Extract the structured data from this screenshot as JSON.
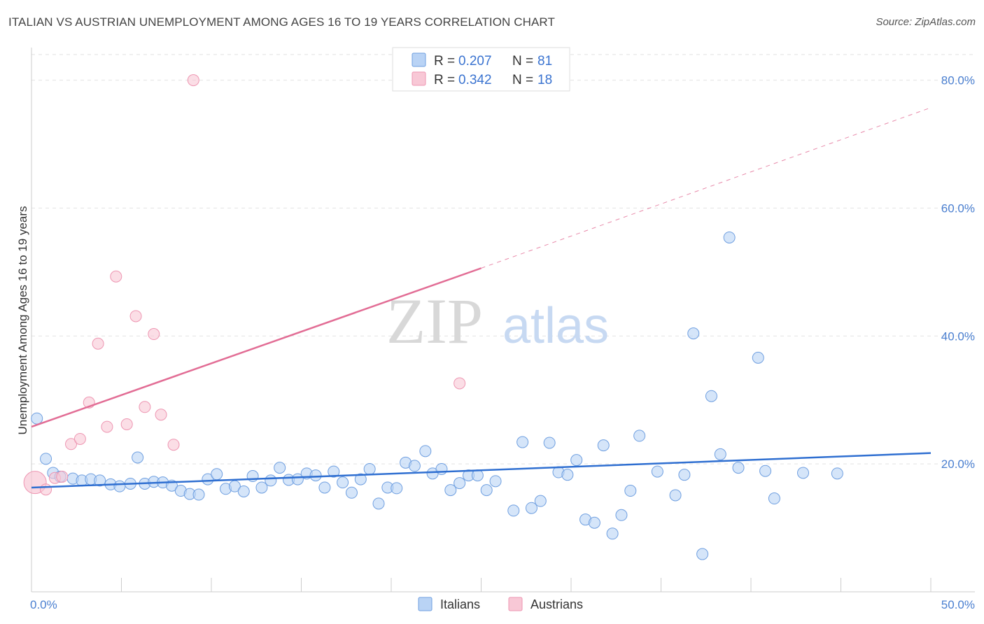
{
  "title": "ITALIAN VS AUSTRIAN UNEMPLOYMENT AMONG AGES 16 TO 19 YEARS CORRELATION CHART",
  "source": "Source: ZipAtlas.com",
  "watermark": {
    "zip": "ZIP",
    "atlas": "atlas"
  },
  "legend": {
    "r_label": "R =",
    "n_label": "N =",
    "rows": [
      {
        "r": "0.207",
        "n": "81",
        "fill": "#b9d3f5",
        "stroke": "#6f9fe0"
      },
      {
        "r": "0.342",
        "n": "18",
        "fill": "#f8c8d6",
        "stroke": "#ee96b2"
      }
    ]
  },
  "colors": {
    "italians_fill": "#b9d3f5",
    "italians_stroke": "#6f9fe0",
    "italians_line": "#2f6fd1",
    "austrians_fill": "#f8c8d6",
    "austrians_stroke": "#ee96b2",
    "austrians_line": "#e26d95"
  },
  "chart_data": {
    "type": "scatter",
    "xlabel": "",
    "ylabel": "Unemployment Among Ages 16 to 19 years",
    "xlim": [
      0,
      50
    ],
    "ylim": [
      0,
      84
    ],
    "x_tick_labels": [
      {
        "value": 0,
        "label": "0.0%"
      },
      {
        "value": 50,
        "label": "50.0%"
      }
    ],
    "x_minor_ticks": [
      0,
      5,
      10,
      15,
      20,
      25,
      30,
      35,
      40,
      45,
      50
    ],
    "y_tick_labels": [
      {
        "value": 20,
        "label": "20.0%"
      },
      {
        "value": 40,
        "label": "40.0%"
      },
      {
        "value": 60,
        "label": "60.0%"
      },
      {
        "value": 80,
        "label": "80.0%"
      }
    ],
    "grid": true,
    "legend_position": "top-center",
    "series": [
      {
        "name": "Italians",
        "points": [
          [
            0.3,
            27.1
          ],
          [
            0.8,
            20.8
          ],
          [
            1.2,
            18.6
          ],
          [
            1.6,
            18.0
          ],
          [
            2.3,
            17.7
          ],
          [
            2.8,
            17.4
          ],
          [
            3.3,
            17.6
          ],
          [
            3.8,
            17.4
          ],
          [
            4.4,
            16.8
          ],
          [
            4.9,
            16.5
          ],
          [
            5.5,
            16.9
          ],
          [
            5.9,
            21.0
          ],
          [
            6.3,
            16.9
          ],
          [
            6.8,
            17.2
          ],
          [
            7.3,
            17.1
          ],
          [
            7.8,
            16.6
          ],
          [
            8.3,
            15.8
          ],
          [
            8.8,
            15.3
          ],
          [
            9.3,
            15.2
          ],
          [
            9.8,
            17.6
          ],
          [
            10.3,
            18.4
          ],
          [
            10.8,
            16.1
          ],
          [
            11.3,
            16.5
          ],
          [
            11.8,
            15.7
          ],
          [
            12.3,
            18.1
          ],
          [
            12.8,
            16.3
          ],
          [
            13.3,
            17.4
          ],
          [
            13.8,
            19.4
          ],
          [
            14.3,
            17.5
          ],
          [
            14.8,
            17.6
          ],
          [
            15.3,
            18.5
          ],
          [
            15.8,
            18.2
          ],
          [
            16.3,
            16.3
          ],
          [
            16.8,
            18.8
          ],
          [
            17.3,
            17.1
          ],
          [
            17.8,
            15.5
          ],
          [
            18.3,
            17.6
          ],
          [
            18.8,
            19.2
          ],
          [
            19.3,
            13.8
          ],
          [
            19.8,
            16.3
          ],
          [
            20.3,
            16.2
          ],
          [
            20.8,
            20.2
          ],
          [
            21.3,
            19.7
          ],
          [
            21.9,
            22.0
          ],
          [
            22.3,
            18.5
          ],
          [
            22.8,
            19.2
          ],
          [
            23.3,
            15.9
          ],
          [
            23.8,
            17.0
          ],
          [
            24.3,
            18.2
          ],
          [
            24.8,
            18.2
          ],
          [
            25.3,
            15.9
          ],
          [
            25.8,
            17.3
          ],
          [
            26.8,
            12.7
          ],
          [
            27.3,
            23.4
          ],
          [
            27.8,
            13.1
          ],
          [
            28.3,
            14.2
          ],
          [
            28.8,
            23.3
          ],
          [
            29.3,
            18.7
          ],
          [
            29.8,
            18.3
          ],
          [
            30.3,
            20.6
          ],
          [
            30.8,
            11.3
          ],
          [
            31.3,
            10.8
          ],
          [
            31.8,
            22.9
          ],
          [
            32.3,
            9.1
          ],
          [
            32.8,
            12.0
          ],
          [
            33.3,
            15.8
          ],
          [
            33.8,
            24.4
          ],
          [
            34.8,
            18.8
          ],
          [
            35.8,
            15.1
          ],
          [
            36.3,
            18.3
          ],
          [
            37.3,
            5.9
          ],
          [
            36.8,
            40.4
          ],
          [
            37.8,
            30.6
          ],
          [
            38.3,
            21.5
          ],
          [
            38.8,
            55.4
          ],
          [
            39.3,
            19.4
          ],
          [
            40.4,
            36.6
          ],
          [
            40.8,
            18.9
          ],
          [
            41.3,
            14.6
          ],
          [
            42.9,
            18.6
          ],
          [
            44.8,
            18.5
          ]
        ]
      },
      {
        "name": "Austrians",
        "points": [
          [
            0.2,
            17.1
          ],
          [
            0.8,
            16.0
          ],
          [
            1.3,
            17.8
          ],
          [
            2.2,
            23.1
          ],
          [
            2.7,
            23.9
          ],
          [
            3.2,
            29.6
          ],
          [
            3.7,
            38.8
          ],
          [
            4.2,
            25.8
          ],
          [
            4.7,
            49.3
          ],
          [
            5.3,
            26.2
          ],
          [
            5.8,
            43.1
          ],
          [
            6.3,
            28.9
          ],
          [
            6.8,
            40.3
          ],
          [
            7.2,
            27.7
          ],
          [
            7.9,
            23.0
          ],
          [
            9.0,
            80.0
          ],
          [
            1.7,
            18.0
          ],
          [
            23.8,
            32.6
          ]
        ]
      }
    ],
    "trendlines": [
      {
        "series": "Italians",
        "x": [
          0,
          50
        ],
        "y": [
          16.3,
          21.7
        ],
        "style": "solid"
      },
      {
        "series": "Austrians",
        "x": [
          0,
          25
        ],
        "y": [
          25.8,
          50.6
        ],
        "style": "solid"
      },
      {
        "series": "Austrians",
        "x": [
          25,
          50
        ],
        "y": [
          50.6,
          75.7
        ],
        "style": "dashed"
      }
    ]
  },
  "bottom_legend": [
    {
      "label": "Italians",
      "fill": "#b9d3f5",
      "stroke": "#6f9fe0"
    },
    {
      "label": "Austrians",
      "fill": "#f8c8d6",
      "stroke": "#ee96b2"
    }
  ]
}
